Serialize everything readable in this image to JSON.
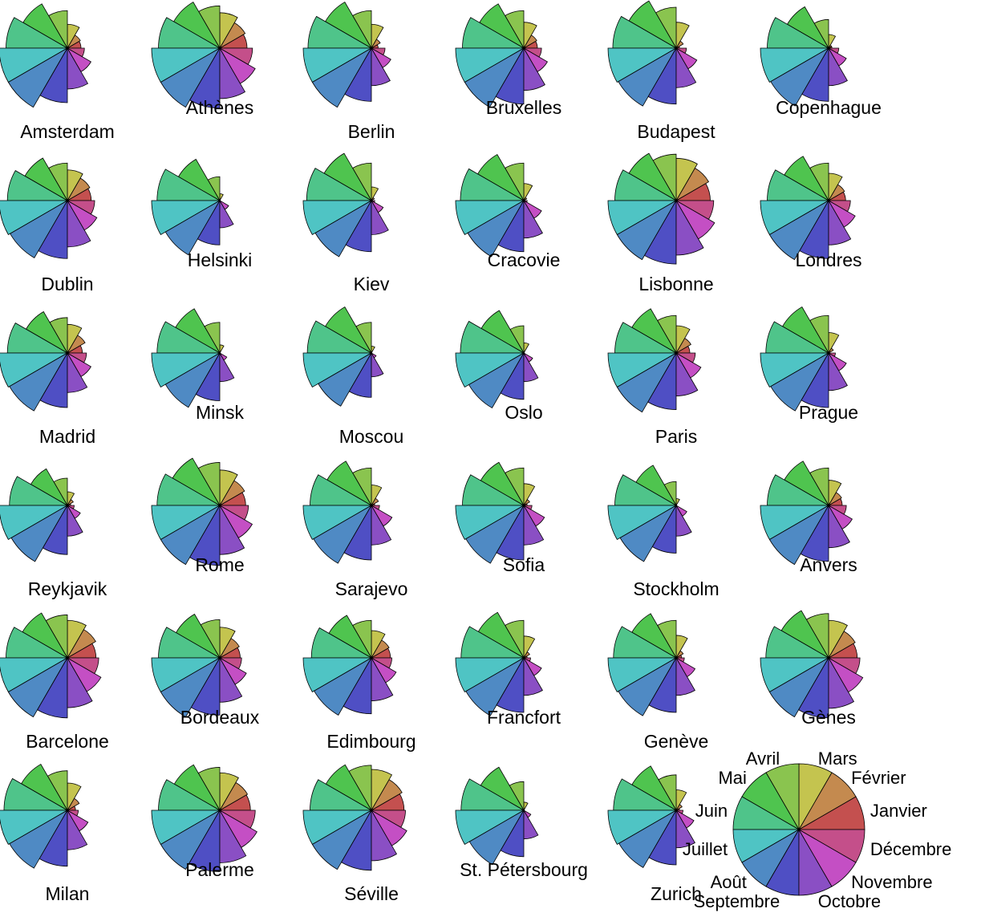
{
  "chart_data": {
    "type": "star",
    "variables": [
      "Janvier",
      "Février",
      "Mars",
      "Avril",
      "Mai",
      "Juin",
      "Juillet",
      "Août",
      "Septembre",
      "Octobre",
      "Novembre",
      "Décembre"
    ],
    "colors": [
      "#C4504F",
      "#C48A4F",
      "#C4C44F",
      "#8AC44F",
      "#4FC44F",
      "#4FC48A",
      "#4FC4C4",
      "#4F8AC4",
      "#4F4FC4",
      "#8A4FC4",
      "#C44FC4",
      "#C44F8A"
    ],
    "key_labels": [
      "Janvier",
      "Février",
      "Mars",
      "Avril",
      "Mai",
      "Juin",
      "Juillet",
      "Août",
      "Septembre",
      "Octobre",
      "Novembre",
      "Décembre"
    ],
    "cities": [
      {
        "name": "Amsterdam",
        "values": [
          0.2,
          0.22,
          0.35,
          0.55,
          0.75,
          0.9,
          1.0,
          1.0,
          0.8,
          0.6,
          0.4,
          0.25
        ]
      },
      {
        "name": "Athènes",
        "values": [
          0.4,
          0.43,
          0.52,
          0.62,
          0.78,
          0.9,
          1.0,
          1.0,
          0.88,
          0.74,
          0.6,
          0.48
        ]
      },
      {
        "name": "Berlin",
        "values": [
          0.1,
          0.15,
          0.35,
          0.55,
          0.78,
          0.93,
          1.0,
          1.0,
          0.78,
          0.55,
          0.33,
          0.2
        ]
      },
      {
        "name": "Bruxelles",
        "values": [
          0.2,
          0.22,
          0.38,
          0.55,
          0.75,
          0.9,
          1.0,
          1.0,
          0.82,
          0.62,
          0.4,
          0.26
        ]
      },
      {
        "name": "Budapest",
        "values": [
          0.05,
          0.12,
          0.38,
          0.6,
          0.8,
          0.93,
          1.0,
          0.98,
          0.82,
          0.58,
          0.35,
          0.15
        ]
      },
      {
        "name": "Copenhague",
        "values": [
          0.05,
          0.05,
          0.2,
          0.42,
          0.7,
          0.9,
          1.0,
          0.98,
          0.78,
          0.55,
          0.3,
          0.15
        ]
      },
      {
        "name": "Dublin",
        "values": [
          0.35,
          0.38,
          0.45,
          0.55,
          0.72,
          0.88,
          1.0,
          0.97,
          0.85,
          0.68,
          0.5,
          0.4
        ]
      },
      {
        "name": "Helsinki",
        "values": [
          0.0,
          0.0,
          0.1,
          0.35,
          0.7,
          0.92,
          1.0,
          0.92,
          0.65,
          0.4,
          0.15,
          0.0
        ]
      },
      {
        "name": "Kiev",
        "values": [
          0.0,
          0.05,
          0.2,
          0.55,
          0.8,
          0.95,
          1.0,
          0.95,
          0.75,
          0.5,
          0.2,
          0.05
        ]
      },
      {
        "name": "Cracovie",
        "values": [
          0.0,
          0.05,
          0.25,
          0.55,
          0.78,
          0.93,
          1.0,
          0.95,
          0.75,
          0.55,
          0.3,
          0.05
        ]
      },
      {
        "name": "Lisbonne",
        "values": [
          0.5,
          0.55,
          0.62,
          0.68,
          0.8,
          0.9,
          1.0,
          1.0,
          0.93,
          0.8,
          0.65,
          0.55
        ]
      },
      {
        "name": "Londres",
        "values": [
          0.25,
          0.27,
          0.4,
          0.55,
          0.75,
          0.9,
          1.0,
          1.0,
          0.85,
          0.65,
          0.45,
          0.32
        ]
      },
      {
        "name": "Madrid",
        "values": [
          0.22,
          0.3,
          0.42,
          0.52,
          0.7,
          0.88,
          1.0,
          0.98,
          0.8,
          0.58,
          0.4,
          0.28
        ]
      },
      {
        "name": "Minsk",
        "values": [
          0.0,
          0.0,
          0.12,
          0.45,
          0.75,
          0.92,
          1.0,
          0.92,
          0.7,
          0.42,
          0.12,
          0.0
        ]
      },
      {
        "name": "Moscou",
        "values": [
          0.0,
          0.0,
          0.1,
          0.45,
          0.78,
          0.94,
          1.0,
          0.9,
          0.65,
          0.35,
          0.08,
          0.0
        ]
      },
      {
        "name": "Oslo",
        "values": [
          0.0,
          0.0,
          0.15,
          0.4,
          0.72,
          0.93,
          1.0,
          0.93,
          0.68,
          0.42,
          0.15,
          0.0
        ]
      },
      {
        "name": "Paris",
        "values": [
          0.2,
          0.25,
          0.4,
          0.55,
          0.75,
          0.9,
          1.0,
          1.0,
          0.83,
          0.63,
          0.42,
          0.28
        ]
      },
      {
        "name": "Prague",
        "values": [
          0.0,
          0.08,
          0.3,
          0.55,
          0.78,
          0.92,
          1.0,
          0.98,
          0.8,
          0.55,
          0.3,
          0.1
        ]
      },
      {
        "name": "Reykjavik",
        "values": [
          0.05,
          0.1,
          0.2,
          0.4,
          0.62,
          0.85,
          1.0,
          0.95,
          0.72,
          0.45,
          0.22,
          0.1
        ]
      },
      {
        "name": "Rome",
        "values": [
          0.38,
          0.42,
          0.52,
          0.63,
          0.8,
          0.92,
          1.0,
          1.0,
          0.88,
          0.72,
          0.55,
          0.42
        ]
      },
      {
        "name": "Sarajevo",
        "values": [
          0.05,
          0.12,
          0.3,
          0.55,
          0.75,
          0.9,
          1.0,
          0.98,
          0.8,
          0.58,
          0.35,
          0.12
        ]
      },
      {
        "name": "Sofia",
        "values": [
          0.05,
          0.1,
          0.32,
          0.55,
          0.73,
          0.9,
          1.0,
          0.98,
          0.8,
          0.58,
          0.35,
          0.12
        ]
      },
      {
        "name": "Stockholm",
        "values": [
          0.0,
          0.0,
          0.1,
          0.35,
          0.68,
          0.9,
          1.0,
          0.95,
          0.7,
          0.45,
          0.18,
          0.0
        ]
      },
      {
        "name": "Anvers",
        "values": [
          0.2,
          0.22,
          0.37,
          0.55,
          0.75,
          0.9,
          1.0,
          1.0,
          0.82,
          0.62,
          0.4,
          0.26
        ]
      },
      {
        "name": "Barcelone",
        "values": [
          0.42,
          0.48,
          0.55,
          0.63,
          0.76,
          0.9,
          1.0,
          1.0,
          0.88,
          0.73,
          0.57,
          0.46
        ]
      },
      {
        "name": "Bordeaux",
        "values": [
          0.3,
          0.33,
          0.45,
          0.56,
          0.74,
          0.9,
          1.0,
          1.0,
          0.84,
          0.65,
          0.45,
          0.32
        ]
      },
      {
        "name": "Edimbourg",
        "values": [
          0.28,
          0.3,
          0.4,
          0.55,
          0.72,
          0.88,
          1.0,
          0.97,
          0.82,
          0.63,
          0.42,
          0.3
        ]
      },
      {
        "name": "Francfort",
        "values": [
          0.05,
          0.1,
          0.32,
          0.55,
          0.77,
          0.92,
          1.0,
          0.98,
          0.8,
          0.55,
          0.3,
          0.1
        ]
      },
      {
        "name": "Genève",
        "values": [
          0.08,
          0.12,
          0.33,
          0.55,
          0.75,
          0.92,
          1.0,
          0.98,
          0.8,
          0.55,
          0.32,
          0.12
        ]
      },
      {
        "name": "Gènes",
        "values": [
          0.42,
          0.45,
          0.55,
          0.65,
          0.8,
          0.92,
          1.0,
          1.0,
          0.88,
          0.74,
          0.58,
          0.46
        ]
      },
      {
        "name": "Milan",
        "values": [
          0.12,
          0.2,
          0.4,
          0.58,
          0.78,
          0.93,
          1.0,
          0.98,
          0.82,
          0.58,
          0.35,
          0.16
        ]
      },
      {
        "name": "Palerme",
        "values": [
          0.45,
          0.47,
          0.55,
          0.63,
          0.77,
          0.9,
          1.0,
          1.0,
          0.9,
          0.77,
          0.63,
          0.52
        ]
      },
      {
        "name": "Séville",
        "values": [
          0.48,
          0.52,
          0.6,
          0.66,
          0.77,
          0.9,
          1.0,
          1.0,
          0.88,
          0.74,
          0.6,
          0.5
        ]
      },
      {
        "name": "St. Pétersbourg",
        "values": [
          0.0,
          0.0,
          0.12,
          0.42,
          0.73,
          0.92,
          1.0,
          0.92,
          0.68,
          0.42,
          0.12,
          0.0
        ]
      },
      {
        "name": "Zurich",
        "values": [
          0.05,
          0.1,
          0.3,
          0.52,
          0.75,
          0.92,
          1.0,
          0.97,
          0.8,
          0.55,
          0.3,
          0.1
        ]
      }
    ],
    "title": "",
    "grid": false,
    "legend": "bottom-right"
  }
}
